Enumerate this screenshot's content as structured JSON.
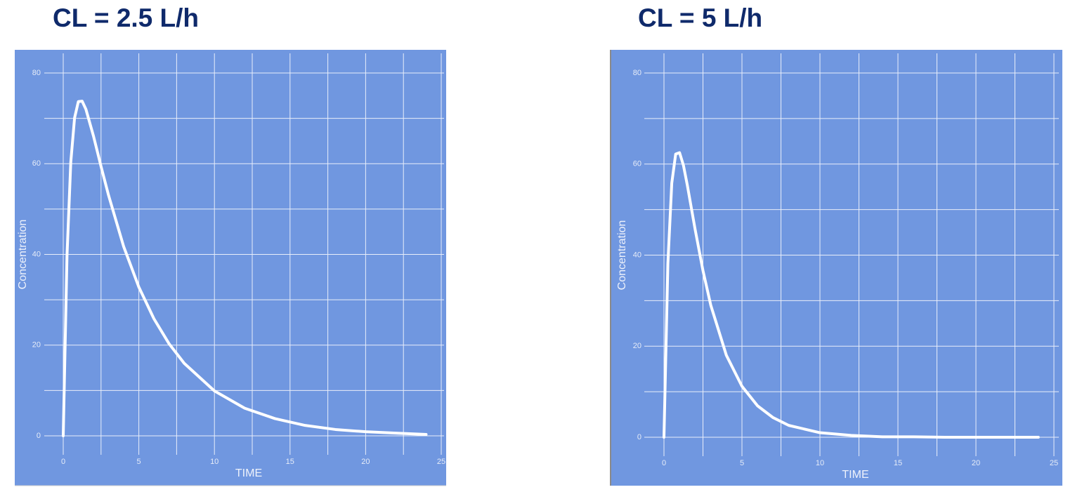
{
  "chart_data": [
    {
      "type": "line",
      "title": "CL = 2.5 L/h",
      "x_label": "TIME",
      "y_label": "Concentration",
      "x": [
        0,
        0.25,
        0.5,
        0.75,
        1,
        1.25,
        1.5,
        2,
        2.5,
        3,
        4,
        5,
        6,
        7,
        8,
        10,
        12,
        14,
        16,
        18,
        20,
        22,
        24
      ],
      "values": [
        0,
        39.8,
        60.4,
        70.1,
        73.7,
        73.8,
        72.0,
        66.1,
        59.4,
        53.0,
        41.7,
        32.8,
        25.8,
        20.3,
        16.0,
        9.9,
        6.1,
        3.8,
        2.3,
        1.4,
        0.9,
        0.6,
        0.3
      ],
      "color": "#ffffff",
      "background": "#7097e0",
      "xlim": [
        0,
        25
      ],
      "ylim": [
        0,
        80
      ],
      "xticks": [
        0,
        5,
        10,
        15,
        20,
        25
      ],
      "yticks": [
        0,
        20,
        40,
        60,
        80
      ],
      "minor_xticks": [
        2.5,
        7.5,
        12.5,
        17.5,
        22.5
      ],
      "minor_yticks": [
        10,
        30,
        50,
        70
      ],
      "grid": true
    },
    {
      "type": "line",
      "title": "CL = 5 L/h",
      "x_label": "TIME",
      "y_label": "Concentration",
      "x": [
        0,
        0.25,
        0.5,
        0.75,
        1,
        1.25,
        1.5,
        2,
        2.5,
        3,
        4,
        5,
        6,
        7,
        8,
        10,
        12,
        14,
        16,
        18,
        20,
        22,
        24
      ],
      "values": [
        0,
        38.1,
        55.8,
        62.2,
        62.5,
        59.7,
        55.3,
        45.6,
        36.6,
        29.0,
        18.0,
        11.2,
        6.9,
        4.3,
        2.6,
        1.0,
        0.4,
        0.1,
        0.1,
        0,
        0,
        0,
        0
      ],
      "color": "#ffffff",
      "background": "#7097e0",
      "xlim": [
        0,
        25
      ],
      "ylim": [
        0,
        80
      ],
      "xticks": [
        0,
        5,
        10,
        15,
        20,
        25
      ],
      "yticks": [
        0,
        20,
        40,
        60,
        80
      ],
      "minor_xticks": [
        2.5,
        7.5,
        12.5,
        17.5,
        22.5
      ],
      "minor_yticks": [
        10,
        30,
        50,
        70
      ],
      "grid": true
    }
  ]
}
